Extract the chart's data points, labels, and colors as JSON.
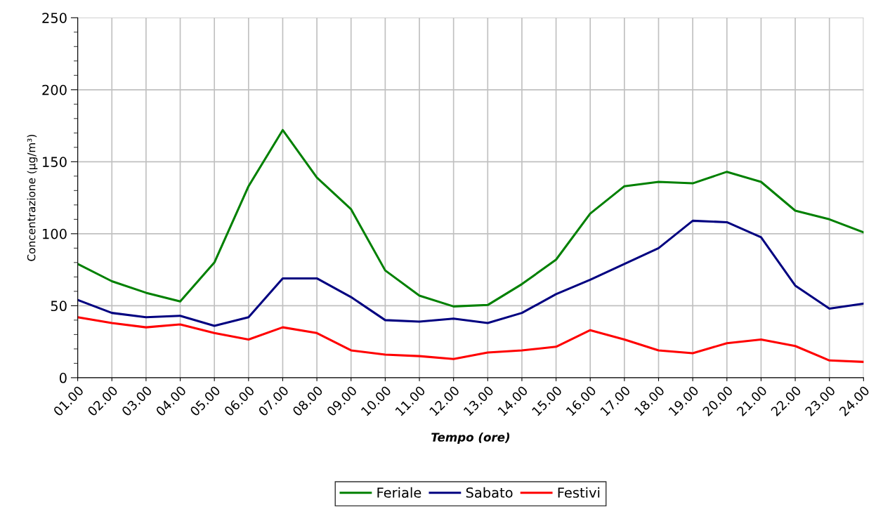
{
  "chart_data": {
    "type": "line",
    "xlabel": "Tempo (ore)",
    "ylabel": "Concentrazione (μg/m³)",
    "categories": [
      "01.00",
      "02.00",
      "03.00",
      "04.00",
      "05.00",
      "06.00",
      "07.00",
      "08.00",
      "09.00",
      "10.00",
      "11.00",
      "12.00",
      "13.00",
      "14.00",
      "15.00",
      "16.00",
      "17.00",
      "18.00",
      "19.00",
      "20.00",
      "21.00",
      "22.00",
      "23.00",
      "24.00"
    ],
    "series": [
      {
        "name": "Feriale",
        "color": "#008000",
        "values": [
          79,
          67,
          59,
          53,
          80,
          133,
          172,
          139,
          117,
          74.5,
          57,
          49.5,
          50.5,
          65,
          82,
          114,
          133,
          136,
          135,
          143,
          136,
          116,
          110,
          101
        ]
      },
      {
        "name": "Sabato",
        "color": "#000080",
        "values": [
          54,
          45,
          42,
          43,
          36,
          42,
          69,
          69,
          56,
          40,
          39,
          41,
          38,
          45,
          58,
          68,
          79,
          90,
          109,
          108,
          97.5,
          64,
          48,
          51.5
        ]
      },
      {
        "name": "Festivi",
        "color": "#ff0000",
        "values": [
          42,
          38,
          35,
          37,
          31,
          26.5,
          35,
          31,
          19,
          16,
          15,
          13,
          17.5,
          19,
          21.5,
          33,
          26.5,
          19,
          17,
          24,
          26.5,
          22,
          12,
          11
        ]
      }
    ],
    "ylim": [
      0,
      250
    ],
    "yticks": [
      0,
      50,
      100,
      150,
      200,
      250
    ],
    "grid": true,
    "legend": "bottom",
    "marker": "none",
    "line_style": "solid"
  }
}
